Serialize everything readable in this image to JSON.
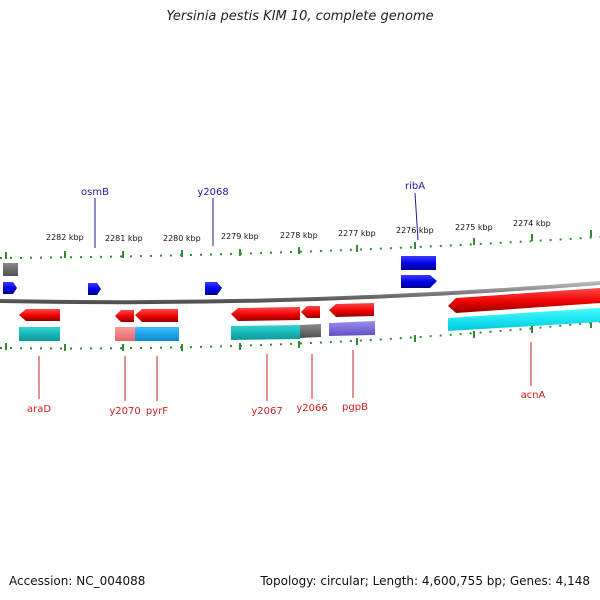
{
  "header": {
    "title": "Yersinia pestis KIM 10, complete genome"
  },
  "footer": {
    "accession": "Accession: NC_004088",
    "stats": "Topology: circular; Length: 4,600,755 bp; Genes: 4,148"
  },
  "colors": {
    "backbone": "#808080",
    "tick": "#2e8b2e",
    "forward_gene": "#0000e6",
    "reverse_gene": "#ee0000",
    "forward_label": "#1a1aa0",
    "reverse_label": "#cc2020"
  },
  "scale_labels": [
    "2282 kbp",
    "2281 kbp",
    "2280 kbp",
    "2279 kbp",
    "2278 kbp",
    "2277 kbp",
    "2276 kbp",
    "2275 kbp",
    "2274 kbp"
  ],
  "gene_labels": {
    "forward": [
      "osmB",
      "y2068",
      "ribA"
    ],
    "reverse": [
      "araD",
      "y2070",
      "pyrF",
      "y2067",
      "y2066",
      "pgpB",
      "acnA"
    ]
  }
}
